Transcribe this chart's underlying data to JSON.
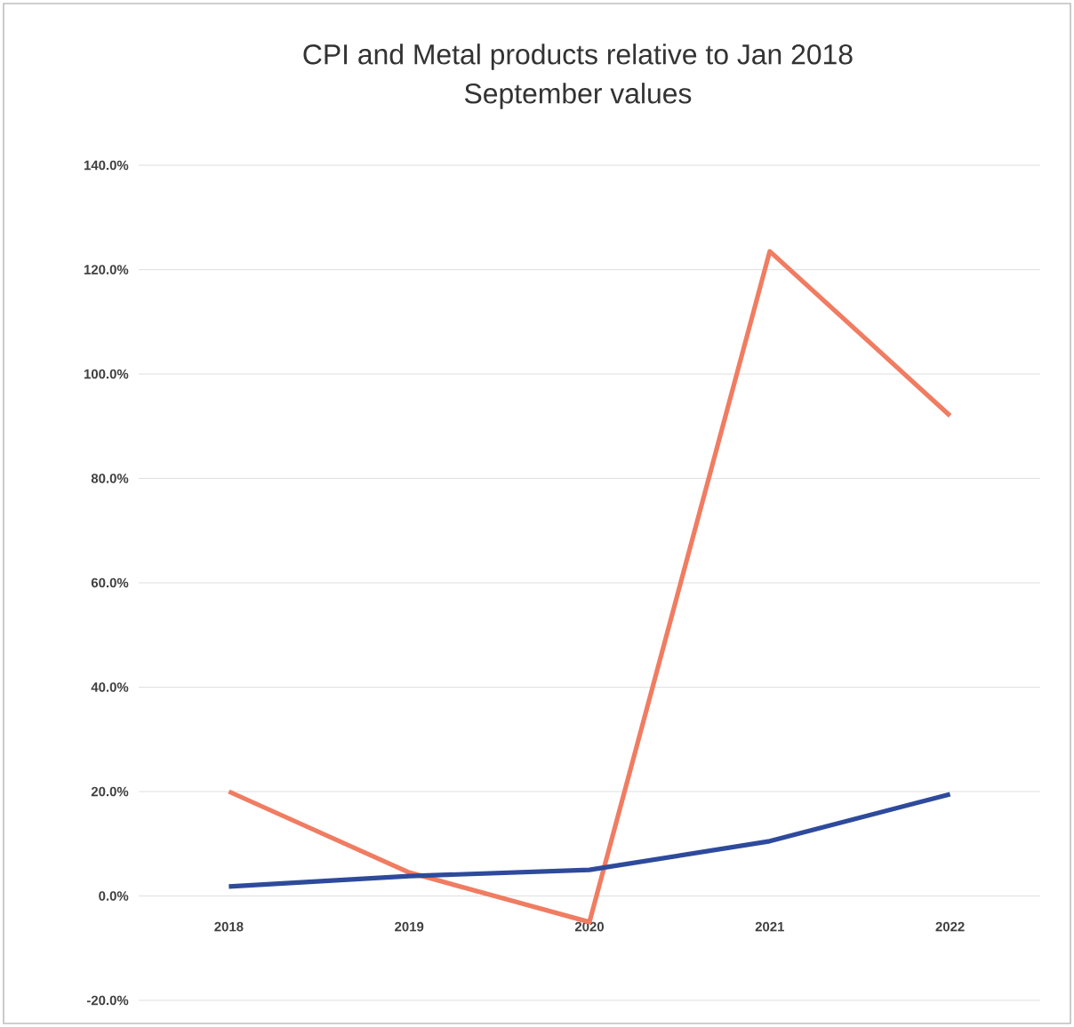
{
  "chart_data": {
    "type": "line",
    "title": "CPI and Metal products relative to Jan 2018",
    "subtitle": "September values",
    "categories": [
      "2018",
      "2019",
      "2020",
      "2021",
      "2022"
    ],
    "series": [
      {
        "color": "#f07c62",
        "values": [
          20,
          4.5,
          -5,
          123.5,
          92
        ]
      },
      {
        "color": "#2e4a9c",
        "values": [
          1.8,
          3.8,
          5,
          10.5,
          19.5
        ]
      }
    ],
    "ylim": [
      -20,
      140
    ],
    "yticks": [
      {
        "value": -20,
        "label": "-20.0%"
      },
      {
        "value": 0,
        "label": "0.0%"
      },
      {
        "value": 20,
        "label": "20.0%"
      },
      {
        "value": 40,
        "label": "40.0%"
      },
      {
        "value": 60,
        "label": "60.0%"
      },
      {
        "value": 80,
        "label": "80.0%"
      },
      {
        "value": 100,
        "label": "100.0%"
      },
      {
        "value": 120,
        "label": "120.0%"
      },
      {
        "value": 140,
        "label": "140.0%"
      }
    ],
    "grid": "y",
    "marker": "none",
    "line_style": "solid"
  }
}
